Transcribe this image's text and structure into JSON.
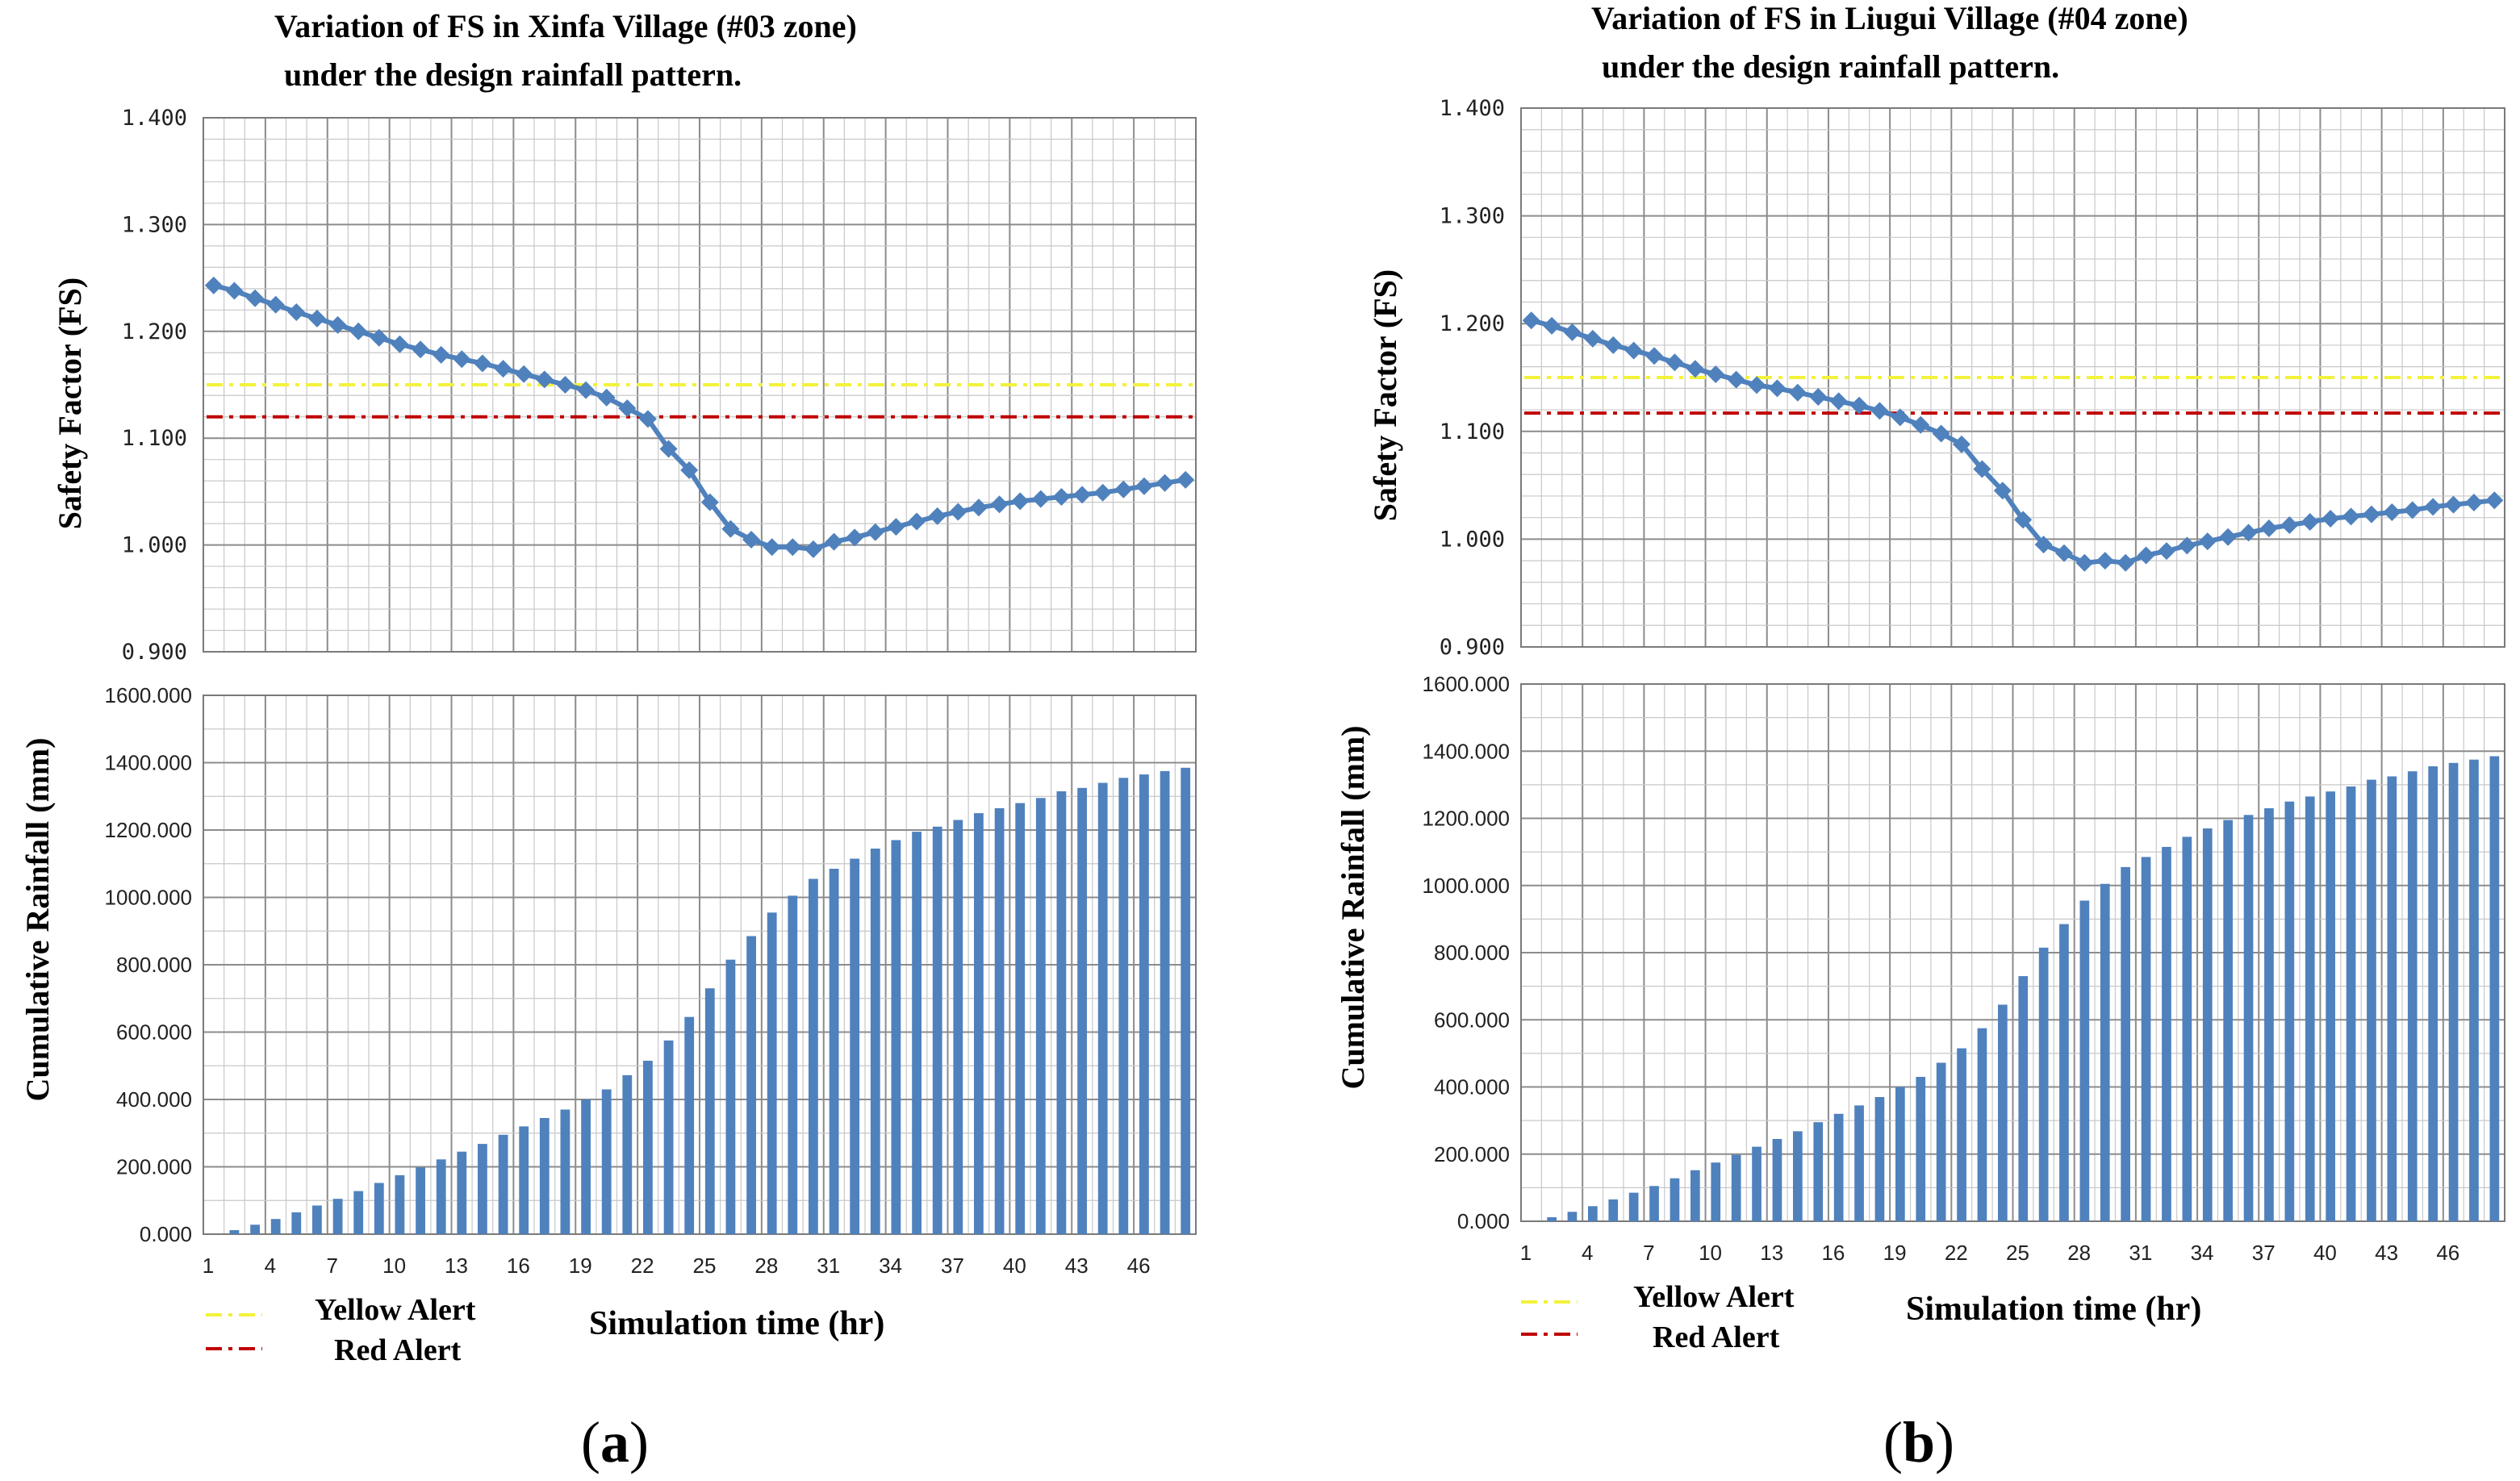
{
  "legend": {
    "yellow_label": "Yellow Alert",
    "red_label": "Red Alert"
  },
  "colors": {
    "series": "#4f81bd",
    "yellow_alert": "#f2f23a",
    "red_alert": "#c00000",
    "grid_minor": "#c8c8c8",
    "grid_major": "#8c8c8c"
  },
  "chart_data": [
    {
      "id": "a",
      "type": "line",
      "panel_label": "(a)",
      "title": "Variation of FS in Xinfa Village (#03 zone)",
      "subtitle": "under the design rainfall pattern.",
      "xlabel": "Simulation time (hr)",
      "ylabel": "Safety Factor (FS)",
      "x": [
        1,
        2,
        3,
        4,
        5,
        6,
        7,
        8,
        9,
        10,
        11,
        12,
        13,
        14,
        15,
        16,
        17,
        18,
        19,
        20,
        21,
        22,
        23,
        24,
        25,
        26,
        27,
        28,
        29,
        30,
        31,
        32,
        33,
        34,
        35,
        36,
        37,
        38,
        39,
        40,
        41,
        42,
        43,
        44,
        45,
        46,
        47,
        48
      ],
      "ylim": [
        0.9,
        1.4
      ],
      "yticks": [
        "1.400",
        "1.300",
        "1.200",
        "1.100",
        "1.000",
        "0.900"
      ],
      "series": [
        {
          "name": "FS",
          "values": [
            1.243,
            1.238,
            1.231,
            1.225,
            1.218,
            1.212,
            1.206,
            1.2,
            1.194,
            1.188,
            1.183,
            1.178,
            1.174,
            1.17,
            1.165,
            1.16,
            1.155,
            1.15,
            1.145,
            1.138,
            1.128,
            1.118,
            1.09,
            1.07,
            1.04,
            1.015,
            1.005,
            0.998,
            0.998,
            0.996,
            1.003,
            1.007,
            1.012,
            1.017,
            1.022,
            1.027,
            1.031,
            1.035,
            1.038,
            1.041,
            1.043,
            1.045,
            1.047,
            1.049,
            1.052,
            1.055,
            1.058,
            1.061
          ]
        }
      ],
      "thresholds": [
        {
          "name": "Yellow Alert",
          "value": 1.15
        },
        {
          "name": "Red Alert",
          "value": 1.12
        }
      ]
    },
    {
      "id": "a_rain",
      "type": "bar",
      "ylabel": "Cumulative Rainfall (mm)",
      "ylim": [
        0,
        1600
      ],
      "yticks": [
        "1600.000",
        "1400.000",
        "1200.000",
        "1000.000",
        "800.000",
        "600.000",
        "400.000",
        "200.000",
        "0.000"
      ],
      "xticks": [
        "1",
        "4",
        "7",
        "10",
        "13",
        "16",
        "19",
        "22",
        "25",
        "28",
        "31",
        "34",
        "37",
        "40",
        "43",
        "46"
      ],
      "series": [
        {
          "name": "Cumulative Rainfall",
          "values": [
            0,
            12,
            28,
            45,
            65,
            85,
            105,
            128,
            152,
            175,
            198,
            222,
            245,
            268,
            295,
            320,
            345,
            370,
            400,
            430,
            472,
            515,
            575,
            645,
            730,
            815,
            885,
            955,
            1005,
            1055,
            1085,
            1115,
            1145,
            1170,
            1195,
            1210,
            1230,
            1250,
            1265,
            1280,
            1295,
            1315,
            1325,
            1340,
            1355,
            1365,
            1375,
            1385
          ]
        }
      ]
    },
    {
      "id": "b",
      "type": "line",
      "panel_label": "(b)",
      "title": "Variation of FS in Liugui Village (#04 zone)",
      "subtitle": "under the design rainfall pattern.",
      "xlabel": "Simulation time (hr)",
      "ylabel": "Safety Factor (FS)",
      "x": [
        1,
        2,
        3,
        4,
        5,
        6,
        7,
        8,
        9,
        10,
        11,
        12,
        13,
        14,
        15,
        16,
        17,
        18,
        19,
        20,
        21,
        22,
        23,
        24,
        25,
        26,
        27,
        28,
        29,
        30,
        31,
        32,
        33,
        34,
        35,
        36,
        37,
        38,
        39,
        40,
        41,
        42,
        43,
        44,
        45,
        46,
        47,
        48
      ],
      "ylim": [
        0.9,
        1.4
      ],
      "yticks": [
        "1.400",
        "1.300",
        "1.200",
        "1.100",
        "1.000",
        "0.900"
      ],
      "series": [
        {
          "name": "FS",
          "values": [
            1.203,
            1.198,
            1.192,
            1.186,
            1.18,
            1.175,
            1.17,
            1.164,
            1.158,
            1.153,
            1.148,
            1.143,
            1.14,
            1.136,
            1.132,
            1.128,
            1.124,
            1.119,
            1.113,
            1.106,
            1.098,
            1.088,
            1.065,
            1.045,
            1.018,
            0.995,
            0.987,
            0.978,
            0.98,
            0.978,
            0.985,
            0.989,
            0.994,
            0.998,
            1.002,
            1.006,
            1.01,
            1.013,
            1.016,
            1.019,
            1.021,
            1.023,
            1.025,
            1.027,
            1.03,
            1.032,
            1.034,
            1.036
          ]
        }
      ],
      "thresholds": [
        {
          "name": "Yellow Alert",
          "value": 1.15
        },
        {
          "name": "Red Alert",
          "value": 1.117
        }
      ]
    },
    {
      "id": "b_rain",
      "type": "bar",
      "ylabel": "Cumulative Rainfall (mm)",
      "ylim": [
        0,
        1600
      ],
      "yticks": [
        "1600.000",
        "1400.000",
        "1200.000",
        "1000.000",
        "800.000",
        "600.000",
        "400.000",
        "200.000",
        "0.000"
      ],
      "xticks": [
        "1",
        "4",
        "7",
        "10",
        "13",
        "16",
        "19",
        "22",
        "25",
        "28",
        "31",
        "34",
        "37",
        "40",
        "43",
        "46"
      ],
      "series": [
        {
          "name": "Cumulative Rainfall",
          "values": [
            0,
            12,
            28,
            45,
            65,
            85,
            105,
            128,
            152,
            175,
            198,
            222,
            245,
            268,
            295,
            320,
            345,
            370,
            400,
            430,
            472,
            515,
            575,
            645,
            730,
            815,
            885,
            955,
            1005,
            1055,
            1085,
            1115,
            1145,
            1170,
            1195,
            1210,
            1230,
            1250,
            1265,
            1280,
            1295,
            1315,
            1325,
            1340,
            1355,
            1365,
            1375,
            1385
          ]
        }
      ]
    }
  ]
}
